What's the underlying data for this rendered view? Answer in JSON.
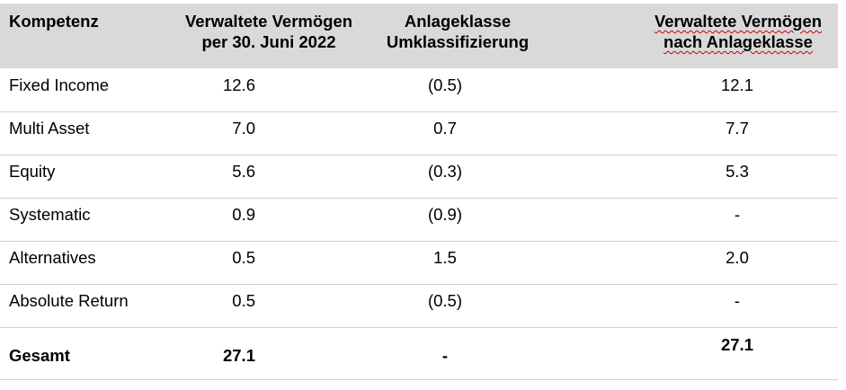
{
  "header": {
    "col1": "Kompetenz",
    "col2_line1": "Verwaltete Vermögen",
    "col2_line2": "per 30. Juni 2022",
    "col3_line1": "Anlageklasse",
    "col3_line2": "Umklassifizierung",
    "col4_line1": "Verwaltete Vermögen",
    "col4_line2": "nach Anlageklasse"
  },
  "rows": [
    {
      "name": "Fixed Income",
      "aum": "12.6",
      "reclass": "(0.5)",
      "aum_by_class": "12.1"
    },
    {
      "name": "Multi Asset",
      "aum": "7.0",
      "reclass": "0.7",
      "aum_by_class": "7.7"
    },
    {
      "name": "Equity",
      "aum": "5.6",
      "reclass": "(0.3)",
      "aum_by_class": "5.3"
    },
    {
      "name": "Systematic",
      "aum": "0.9",
      "reclass": "(0.9)",
      "aum_by_class": "-"
    },
    {
      "name": "Alternatives",
      "aum": "0.5",
      "reclass": "1.5",
      "aum_by_class": "2.0"
    },
    {
      "name": "Absolute Return",
      "aum": "0.5",
      "reclass": "(0.5)",
      "aum_by_class": "-"
    }
  ],
  "total": {
    "name": "Gesamt",
    "aum": "27.1",
    "reclass": "-",
    "aum_by_class": "27.1"
  }
}
